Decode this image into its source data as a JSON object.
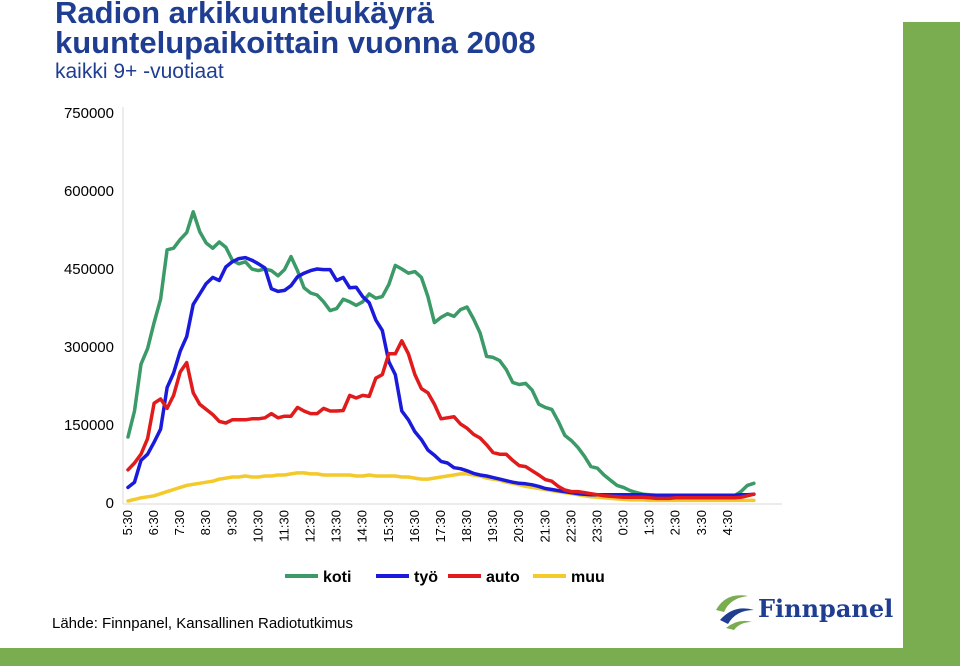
{
  "header": {
    "title_line1": "Radion arkikuuntelukäyrä",
    "title_line2": "kuuntelupaikoittain vuonna 2008",
    "subtitle": "kaikki 9+ -vuotiaat"
  },
  "source": "Lähde: Finnpanel, Kansallinen Radiotutkimus",
  "logo": {
    "text": "Finnpanel",
    "icon": "finnpanel-swirl-logo"
  },
  "colors": {
    "koti": "#3b9a68",
    "tyo": "#1a1adc",
    "auto": "#e11b1b",
    "muu": "#f4c92a",
    "brand_green": "#7aac50",
    "title_blue": "#1f3e92"
  },
  "chart_data": {
    "type": "line",
    "title": "",
    "xlabel": "",
    "ylabel": "",
    "ylim": [
      0,
      750000
    ],
    "yticks": [
      0,
      150000,
      300000,
      450000,
      600000,
      750000
    ],
    "xticks": [
      "5:30",
      "6:30",
      "7:30",
      "8:30",
      "9:30",
      "10:30",
      "11:30",
      "12:30",
      "13:30",
      "14:30",
      "15:30",
      "16:30",
      "17:30",
      "18:30",
      "19:30",
      "20:30",
      "21:30",
      "22:30",
      "23:30",
      "0:30",
      "1:30",
      "2:30",
      "3:30",
      "4:30"
    ],
    "x_interval_minutes": 15,
    "x_start": "5:30",
    "grid": false,
    "legend": "bottom-center",
    "series": [
      {
        "name": "koti",
        "values": [
          125000,
          175000,
          265000,
          295000,
          345000,
          390000,
          485000,
          488000,
          505000,
          518000,
          558000,
          520000,
          498000,
          488000,
          500000,
          490000,
          465000,
          458000,
          462000,
          448000,
          445000,
          448000,
          445000,
          435000,
          447000,
          472000,
          445000,
          412000,
          402000,
          398000,
          385000,
          368000,
          372000,
          390000,
          385000,
          378000,
          385000,
          400000,
          392000,
          395000,
          418000,
          455000,
          448000,
          440000,
          443000,
          432000,
          395000,
          345000,
          355000,
          362000,
          357000,
          370000,
          375000,
          352000,
          325000,
          280000,
          278000,
          272000,
          255000,
          230000,
          226000,
          228000,
          215000,
          188000,
          182000,
          178000,
          155000,
          128000,
          118000,
          105000,
          88000,
          68000,
          65000,
          52000,
          42000,
          32000,
          28000,
          22000,
          18000,
          15000,
          14000,
          13000,
          12000,
          12000,
          12000,
          12000,
          12000,
          12000,
          12000,
          12000,
          12000,
          12000,
          12000,
          12000,
          20000,
          32000,
          36000
        ]
      },
      {
        "name": "työ",
        "values": [
          28000,
          38000,
          80000,
          92000,
          115000,
          140000,
          220000,
          248000,
          290000,
          318000,
          380000,
          400000,
          420000,
          432000,
          426000,
          452000,
          462000,
          468000,
          470000,
          465000,
          458000,
          450000,
          410000,
          405000,
          407000,
          416000,
          433000,
          440000,
          445000,
          448000,
          447000,
          447000,
          426000,
          432000,
          412000,
          413000,
          395000,
          383000,
          350000,
          330000,
          270000,
          245000,
          175000,
          158000,
          135000,
          120000,
          100000,
          90000,
          78000,
          75000,
          66000,
          64000,
          60000,
          55000,
          52000,
          50000,
          47000,
          44000,
          41000,
          38000,
          36000,
          35000,
          33000,
          30000,
          26000,
          24000,
          22000,
          20000,
          18000,
          16000,
          15000,
          14000,
          14000,
          14000,
          14000,
          14000,
          14000,
          14000,
          14000,
          14000,
          13000,
          13000,
          13000,
          13000,
          13000,
          13000,
          13000,
          13000,
          13000,
          13000,
          13000,
          13000,
          13000,
          13000,
          14000,
          14000,
          15000
        ]
      },
      {
        "name": "auto",
        "values": [
          62000,
          75000,
          92000,
          122000,
          190000,
          198000,
          180000,
          205000,
          250000,
          268000,
          210000,
          188000,
          178000,
          168000,
          155000,
          152000,
          158000,
          158000,
          158000,
          160000,
          160000,
          162000,
          170000,
          162000,
          165000,
          165000,
          182000,
          175000,
          170000,
          170000,
          180000,
          175000,
          175000,
          176000,
          205000,
          200000,
          205000,
          203000,
          238000,
          245000,
          285000,
          285000,
          310000,
          285000,
          245000,
          218000,
          210000,
          188000,
          160000,
          162000,
          164000,
          150000,
          142000,
          130000,
          123000,
          110000,
          95000,
          92000,
          92000,
          80000,
          70000,
          68000,
          60000,
          52000,
          43000,
          40000,
          30000,
          23000,
          20000,
          20000,
          18000,
          16000,
          14000,
          12000,
          11000,
          10000,
          9000,
          9000,
          9000,
          9000,
          8000,
          7000,
          7000,
          7000,
          8000,
          8000,
          8000,
          8000,
          8000,
          8000,
          8000,
          8000,
          8000,
          8000,
          9000,
          12000,
          15000
        ]
      },
      {
        "name": "muu",
        "values": [
          2000,
          5000,
          8000,
          10000,
          12000,
          16000,
          20000,
          24000,
          28000,
          32000,
          34000,
          36000,
          38000,
          40000,
          44000,
          46000,
          48000,
          48000,
          50000,
          48000,
          48000,
          50000,
          50000,
          52000,
          52000,
          54000,
          56000,
          56000,
          54000,
          54000,
          52000,
          52000,
          52000,
          52000,
          52000,
          50000,
          50000,
          52000,
          50000,
          50000,
          50000,
          50000,
          48000,
          48000,
          46000,
          44000,
          44000,
          46000,
          48000,
          50000,
          52000,
          54000,
          54000,
          52000,
          50000,
          46000,
          44000,
          42000,
          38000,
          36000,
          33000,
          30000,
          28000,
          26000,
          24000,
          22000,
          20000,
          18000,
          16000,
          14000,
          12000,
          10000,
          9000,
          8000,
          7000,
          6000,
          5000,
          4000,
          4000,
          4000,
          3000,
          3000,
          3000,
          3000,
          3000,
          3000,
          3000,
          3000,
          3000,
          3000,
          3000,
          3000,
          3000,
          3000,
          3000,
          3000,
          3000
        ]
      }
    ]
  }
}
